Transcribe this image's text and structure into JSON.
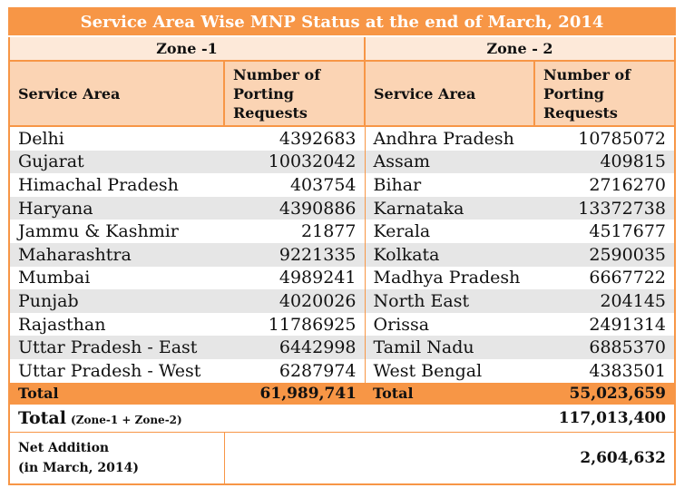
{
  "title": "Service Area Wise MNP Status at the end of March, 2014",
  "zone1": {
    "label": "Zone -1",
    "col_service_area": "Service Area",
    "col_requests": "Number of Porting Requests",
    "rows": [
      {
        "area": "Delhi",
        "value": "4392683"
      },
      {
        "area": "Gujarat",
        "value": "10032042"
      },
      {
        "area": "Himachal Pradesh",
        "value": "403754"
      },
      {
        "area": "Haryana",
        "value": "4390886"
      },
      {
        "area": "Jammu & Kashmir",
        "value": "21877"
      },
      {
        "area": "Maharashtra",
        "value": "9221335"
      },
      {
        "area": "Mumbai",
        "value": "4989241"
      },
      {
        "area": "Punjab",
        "value": "4020026"
      },
      {
        "area": "Rajasthan",
        "value": "11786925"
      },
      {
        "area": "Uttar Pradesh - East",
        "value": "6442998"
      },
      {
        "area": "Uttar Pradesh - West",
        "value": "6287974"
      }
    ],
    "total_label": "Total",
    "total_value": "61,989,741"
  },
  "zone2": {
    "label": "Zone - 2",
    "col_service_area": "Service Area",
    "col_requests": "Number of Porting Requests",
    "rows": [
      {
        "area": "Andhra Pradesh",
        "value": "10785072"
      },
      {
        "area": "Assam",
        "value": "409815"
      },
      {
        "area": "Bihar",
        "value": "2716270"
      },
      {
        "area": "Karnataka",
        "value": "13372738"
      },
      {
        "area": "Kerala",
        "value": "4517677"
      },
      {
        "area": "Kolkata",
        "value": "2590035"
      },
      {
        "area": "Madhya Pradesh",
        "value": "6667722"
      },
      {
        "area": "North East",
        "value": "204145"
      },
      {
        "area": "Orissa",
        "value": "2491314"
      },
      {
        "area": "Tamil Nadu",
        "value": "6885370"
      },
      {
        "area": "West Bengal",
        "value": "4383501"
      }
    ],
    "total_label": "Total",
    "total_value": "55,023,659"
  },
  "grand_total": {
    "label": "Total",
    "sub_label": "(Zone-1 + Zone-2)",
    "value": "117,013,400"
  },
  "net_addition": {
    "label": "Net Addition",
    "sub_label": "(in March, 2014)",
    "value": "2,604,632"
  },
  "colors": {
    "accent": "#f79646",
    "zone_bg": "#fde9d9",
    "header_bg": "#fbd4b4",
    "stripe": "#e6e6e6"
  }
}
